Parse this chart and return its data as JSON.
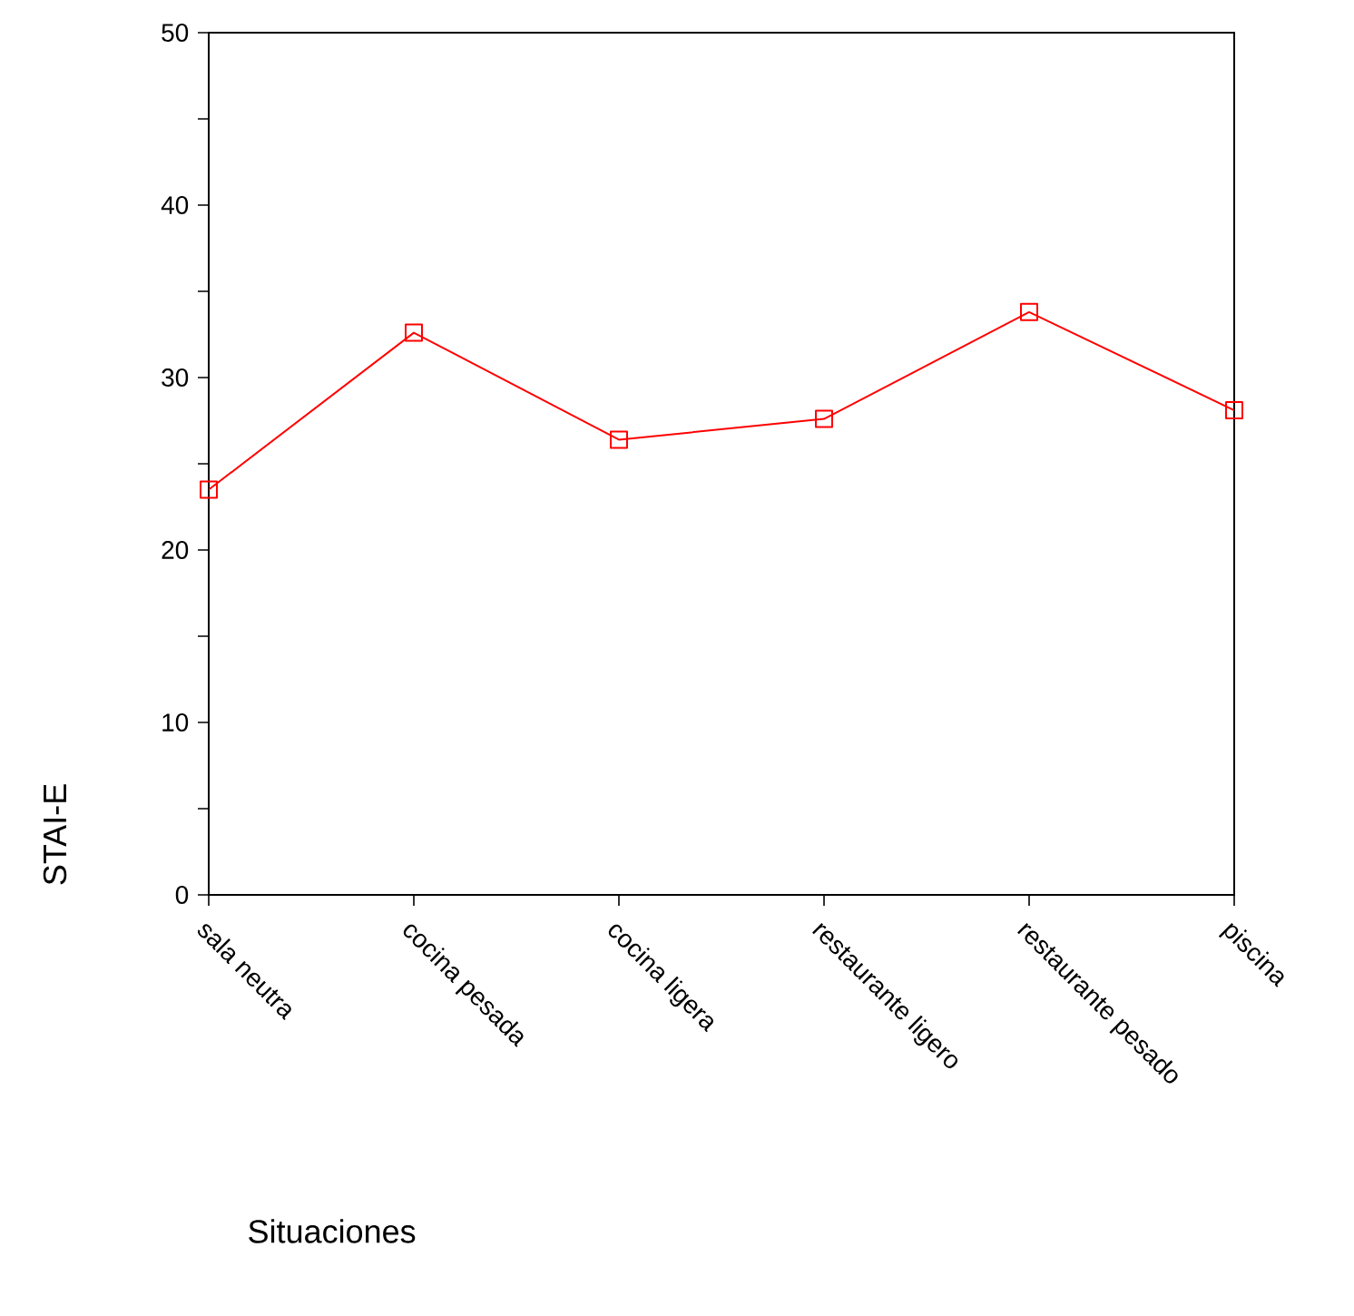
{
  "chart_data": {
    "type": "line",
    "xlabel": "Situaciones",
    "ylabel": "STAI-E",
    "categories": [
      "sala neutra",
      "cocina pesada",
      "cocina ligera",
      "restaurante ligero",
      "restaurante pesado",
      "piscina"
    ],
    "series": [
      {
        "color": "#ff0000",
        "values": [
          23.5,
          32.6,
          26.4,
          27.6,
          33.8,
          28.1
        ]
      }
    ],
    "ylim": [
      0,
      50
    ],
    "yticks": [
      0,
      {
        "value": 5,
        "label": null
      },
      10,
      {
        "value": 15,
        "label": null
      },
      20,
      {
        "value": 25,
        "label": null
      },
      30,
      {
        "value": 35,
        "label": null
      },
      40,
      {
        "value": 45,
        "label": null
      },
      50
    ],
    "grid": false,
    "marker": "square",
    "line_style": "solid"
  }
}
